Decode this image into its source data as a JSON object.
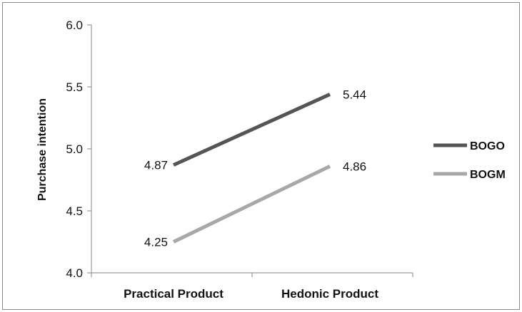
{
  "chart_data": {
    "type": "line",
    "categories": [
      "Practical Product",
      "Hedonic Product"
    ],
    "series": [
      {
        "name": "BOGO",
        "values": [
          4.87,
          5.44
        ],
        "color": "#555555"
      },
      {
        "name": "BOGM",
        "values": [
          4.25,
          4.86
        ],
        "color": "#a8a8a8"
      }
    ],
    "ylabel": "Purchase intention",
    "xlabel": "",
    "ylim": [
      4.0,
      6.0
    ],
    "yticks": [
      "4.0",
      "4.5",
      "5.0",
      "5.5",
      "6.0"
    ],
    "grid": false,
    "legend_position": "right"
  }
}
